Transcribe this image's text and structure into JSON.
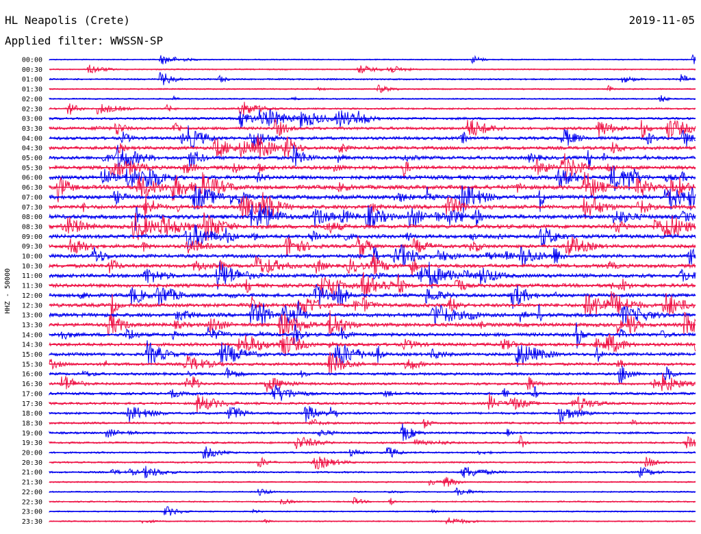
{
  "header": {
    "station": "HL Neapolis (Crete)",
    "filter": "Applied filter: WWSSN-SP",
    "date": "2019-11-05"
  },
  "colors": {
    "trace_a": "#0000ee",
    "trace_b": "#ee1144",
    "background": "#ffffff"
  },
  "chart_data": {
    "type": "line",
    "title": "HL Neapolis (Crete)",
    "subtitle": "Applied filter: WWSSN-SP",
    "date": "2019-11-05",
    "ylabel": "HHZ - 50000",
    "y_categories": [
      "00:00",
      "00:30",
      "01:00",
      "01:30",
      "02:00",
      "02:30",
      "03:00",
      "03:30",
      "04:00",
      "04:30",
      "05:00",
      "05:30",
      "06:00",
      "06:30",
      "07:00",
      "07:30",
      "08:00",
      "08:30",
      "09:00",
      "09:30",
      "10:00",
      "10:30",
      "11:00",
      "11:30",
      "12:00",
      "12:30",
      "13:00",
      "13:30",
      "14:00",
      "14:30",
      "15:00",
      "15:30",
      "16:00",
      "16:30",
      "17:00",
      "17:30",
      "18:00",
      "18:30",
      "19:00",
      "19:30",
      "20:00",
      "20:30",
      "21:00",
      "21:30",
      "22:00",
      "22:30",
      "23:00",
      "23:30"
    ],
    "series": [
      {
        "color": "#0000ee",
        "rows": "even"
      },
      {
        "color": "#ee1144",
        "rows": "odd"
      }
    ],
    "activity": [
      0.08,
      0.08,
      0.18,
      0.12,
      0.12,
      0.2,
      0.35,
      0.45,
      0.5,
      0.55,
      0.6,
      0.65,
      0.7,
      0.75,
      0.72,
      0.7,
      0.75,
      0.7,
      0.65,
      0.6,
      0.6,
      0.65,
      0.65,
      0.65,
      0.6,
      0.65,
      0.68,
      0.65,
      0.6,
      0.55,
      0.5,
      0.45,
      0.4,
      0.38,
      0.38,
      0.35,
      0.32,
      0.28,
      0.28,
      0.25,
      0.2,
      0.18,
      0.22,
      0.12,
      0.1,
      0.12,
      0.1,
      0.1
    ],
    "grid": false
  }
}
